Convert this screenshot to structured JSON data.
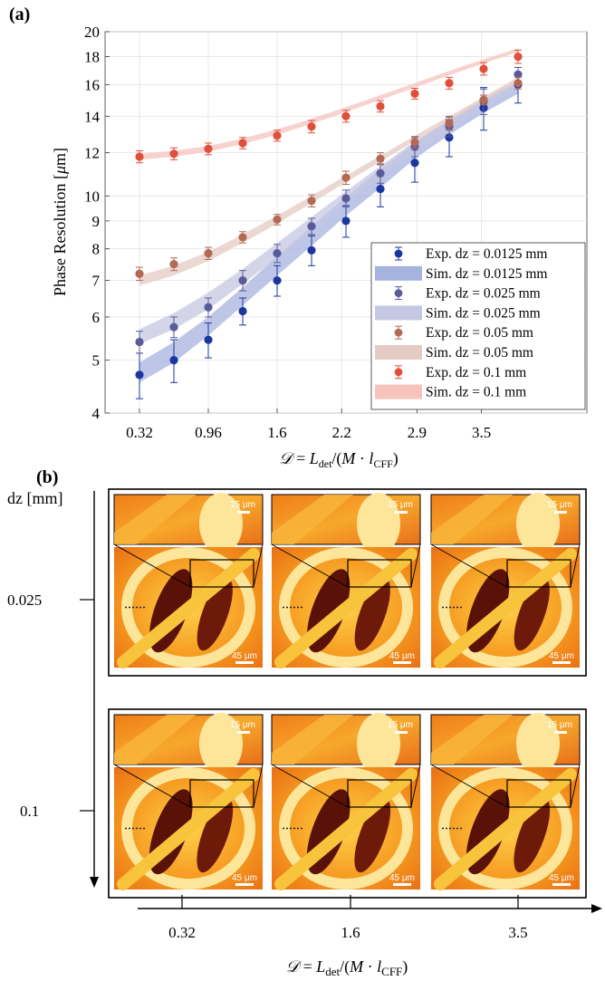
{
  "panel_a": {
    "letter": "(a)"
  },
  "panel_b": {
    "letter": "(b)",
    "y_axis_label": "dz [mm]",
    "y_ticks": [
      "0.025",
      "0.1"
    ],
    "x_ticks": [
      "0.32",
      "1.6",
      "3.5"
    ],
    "x_axis_label": "𝒟 = L_det/(M · l_CFF)",
    "inset_scale": "15 μm",
    "main_scale": "45 μm"
  },
  "colors": {
    "dz_0_0125": "#1c36a0",
    "dz_0_025": "#5a5c9a",
    "dz_0_05": "#b26a55",
    "dz_0_1": "#e04f3a",
    "band_0_0125": "#a7b3df",
    "band_0_025": "#c6c7e2",
    "band_0_05": "#e4cbc3",
    "band_0_1": "#f6c3bd"
  },
  "chart_data": {
    "type": "scatter",
    "x_tick_labels": [
      "0.32",
      "0.96",
      "1.6",
      "2.2",
      "2.9",
      "3.5"
    ],
    "x": [
      0.32,
      0.64,
      0.96,
      1.28,
      1.6,
      1.92,
      2.24,
      2.56,
      2.88,
      3.2,
      3.52,
      3.84
    ],
    "y_scale": "log",
    "ylim": [
      4,
      20
    ],
    "y_ticks": [
      4,
      5,
      6,
      7,
      8,
      9,
      10,
      12,
      14,
      16,
      18,
      20
    ],
    "xlabel": "𝒟 = L_det/(M · l_CFF)",
    "ylabel": "Phase Resolution [μm]",
    "grid": true,
    "legend_position": "bottom-right",
    "series": [
      {
        "name": "Exp. dz = 0.0125 mm",
        "kind": "points",
        "color_key": "dz_0_0125",
        "values": [
          4.7,
          5.0,
          5.45,
          6.15,
          7.0,
          7.95,
          9.0,
          10.3,
          11.5,
          12.8,
          14.5,
          16.0
        ],
        "error": [
          0.45,
          0.45,
          0.4,
          0.35,
          0.45,
          0.5,
          0.6,
          0.75,
          0.9,
          1.0,
          1.3,
          1.2
        ]
      },
      {
        "name": "Sim. dz = 0.0125 mm",
        "kind": "band",
        "color_key": "band_0_0125",
        "lower": [
          4.55,
          4.95,
          5.55,
          6.3,
          7.15,
          8.1,
          9.2,
          10.35,
          11.7,
          12.95,
          14.2,
          15.4
        ],
        "upper": [
          4.95,
          5.4,
          6.0,
          6.8,
          7.75,
          8.8,
          9.95,
          11.2,
          12.5,
          13.8,
          15.0,
          16.1
        ]
      },
      {
        "name": "Exp. dz = 0.025 mm",
        "kind": "points",
        "color_key": "dz_0_025",
        "values": [
          5.4,
          5.75,
          6.25,
          7.0,
          7.85,
          8.8,
          9.9,
          11.0,
          12.3,
          13.4,
          14.9,
          16.7
        ],
        "error": [
          0.25,
          0.25,
          0.25,
          0.3,
          0.3,
          0.3,
          0.35,
          0.45,
          0.5,
          0.55,
          0.8,
          0.5
        ]
      },
      {
        "name": "Sim. dz = 0.025 mm",
        "kind": "band",
        "color_key": "band_0_025",
        "lower": [
          5.35,
          5.7,
          6.2,
          6.9,
          7.7,
          8.6,
          9.7,
          10.85,
          12.0,
          13.2,
          14.5,
          15.7
        ],
        "upper": [
          5.7,
          6.1,
          6.65,
          7.35,
          8.2,
          9.15,
          10.2,
          11.35,
          12.6,
          13.8,
          15.1,
          16.3
        ]
      },
      {
        "name": "Exp. dz = 0.05 mm",
        "kind": "points",
        "color_key": "dz_0_05",
        "values": [
          7.2,
          7.5,
          7.85,
          8.4,
          9.05,
          9.8,
          10.8,
          11.7,
          12.55,
          13.6,
          15.0,
          16.1
        ],
        "error": [
          0.2,
          0.2,
          0.2,
          0.2,
          0.2,
          0.25,
          0.3,
          0.3,
          0.3,
          0.4,
          0.3,
          0.4
        ]
      },
      {
        "name": "Sim. dz = 0.05 mm",
        "kind": "band",
        "color_key": "band_0_05",
        "lower": [
          6.85,
          7.15,
          7.6,
          8.2,
          8.9,
          9.7,
          10.6,
          11.55,
          12.6,
          13.7,
          14.9,
          16.2
        ],
        "upper": [
          7.15,
          7.45,
          7.9,
          8.5,
          9.2,
          10.0,
          10.9,
          11.85,
          12.9,
          14.0,
          15.2,
          16.5
        ]
      },
      {
        "name": "Exp. dz = 0.1 mm",
        "kind": "points",
        "color_key": "dz_0_1",
        "values": [
          11.8,
          11.95,
          12.2,
          12.5,
          12.9,
          13.4,
          14.0,
          14.6,
          15.4,
          16.1,
          17.1,
          18.0
        ],
        "error": [
          0.3,
          0.3,
          0.3,
          0.3,
          0.3,
          0.35,
          0.35,
          0.35,
          0.35,
          0.4,
          0.45,
          0.5
        ]
      },
      {
        "name": "Sim. dz = 0.1 mm",
        "kind": "band",
        "color_key": "band_0_1",
        "lower": [
          11.65,
          11.8,
          12.05,
          12.45,
          12.95,
          13.55,
          14.25,
          15.0,
          15.8,
          16.65,
          17.5,
          18.35
        ],
        "upper": [
          11.95,
          12.1,
          12.35,
          12.75,
          13.25,
          13.85,
          14.55,
          15.3,
          16.1,
          16.95,
          17.8,
          18.65
        ]
      }
    ]
  }
}
